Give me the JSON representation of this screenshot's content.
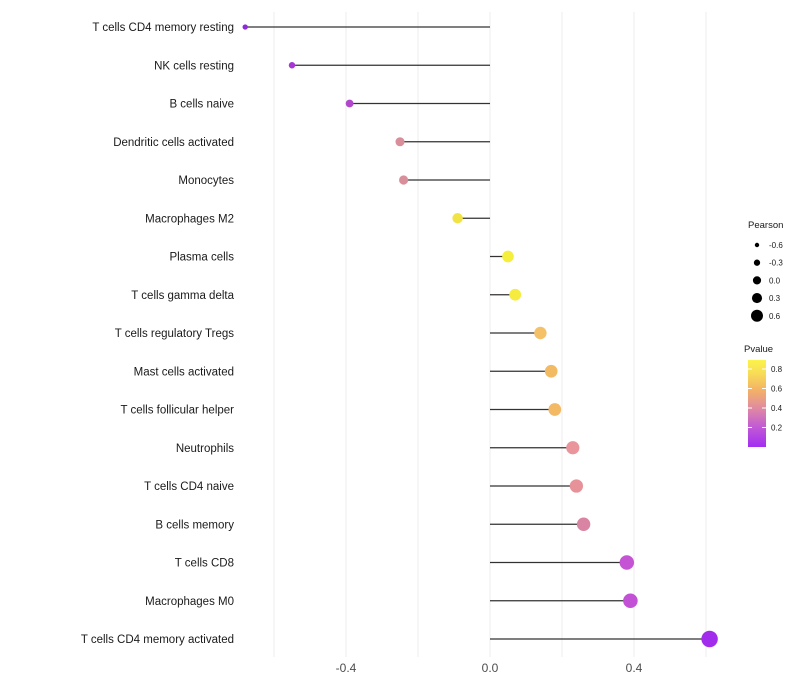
{
  "figure": {
    "background": "#ffffff",
    "stem_color": "#333333",
    "gridline_color": "#ececec",
    "axis_tick_color": "#4d4d4d",
    "label_color": "#1a1a1a"
  },
  "chart_data": {
    "type": "scatter",
    "variant": "lollipop",
    "orientation": "horizontal",
    "title": "",
    "xlabel": "",
    "ylabel": "",
    "grid": "vertical-gridlines-only",
    "xlim": [
      -0.72,
      0.68
    ],
    "baseline_x": 0.0,
    "x_ticks": [
      -0.4,
      0.0,
      0.4
    ],
    "x_tick_labels": [
      "-0.4",
      "0.0",
      "0.4"
    ],
    "x_gridlines": [
      -0.6,
      -0.4,
      -0.2,
      0.0,
      0.2,
      0.4,
      0.6
    ],
    "categories": [
      "T cells CD4 memory resting",
      "NK cells resting",
      "B cells naive",
      "Dendritic cells activated",
      "Monocytes",
      "Macrophages M2",
      "Plasma cells",
      "T cells gamma delta",
      "T cells regulatory  Tregs",
      "Mast cells activated",
      "T cells follicular helper",
      "Neutrophils",
      "T cells CD4 naive",
      "B cells memory",
      "T cells CD8",
      "Macrophages M0",
      "T cells CD4 memory activated"
    ],
    "series": [
      {
        "name": "Pearson correlation",
        "values": [
          -0.68,
          -0.55,
          -0.39,
          -0.25,
          -0.24,
          -0.09,
          0.05,
          0.07,
          0.14,
          0.17,
          0.18,
          0.23,
          0.24,
          0.26,
          0.38,
          0.39,
          0.61
        ]
      }
    ],
    "point_colors": [
      "#8e2bd8",
      "#a637d2",
      "#b148cb",
      "#d88f9a",
      "#d88f9a",
      "#f2e345",
      "#f6ee3c",
      "#f5ec3f",
      "#f4c167",
      "#f3ba64",
      "#f3b965",
      "#e9959b",
      "#e79299",
      "#d984a2",
      "#c454d4",
      "#c251d5",
      "#a22ceb"
    ],
    "size_encoding": "Pearson",
    "color_encoding": "Pvalue",
    "legends": {
      "size": {
        "title": "Pearson",
        "entries": [
          {
            "label": "-0.6",
            "value": -0.6
          },
          {
            "label": "-0.3",
            "value": -0.3
          },
          {
            "label": "0.0",
            "value": 0.0
          },
          {
            "label": "0.3",
            "value": 0.3
          },
          {
            "label": "0.6",
            "value": 0.6
          }
        ],
        "dot_color": "#000000"
      },
      "color": {
        "title": "Pvalue",
        "tick_labels": [
          "0.8",
          "0.6",
          "0.4",
          "0.2"
        ],
        "tick_values": [
          0.8,
          0.6,
          0.4,
          0.2
        ],
        "gradient_stops": [
          {
            "offset": 0,
            "color": "#fbf34b"
          },
          {
            "offset": 0.15,
            "color": "#f8dd56"
          },
          {
            "offset": 0.35,
            "color": "#f3b167"
          },
          {
            "offset": 0.55,
            "color": "#e08ba0"
          },
          {
            "offset": 0.75,
            "color": "#c45ed2"
          },
          {
            "offset": 1,
            "color": "#a32df2"
          }
        ]
      }
    }
  }
}
